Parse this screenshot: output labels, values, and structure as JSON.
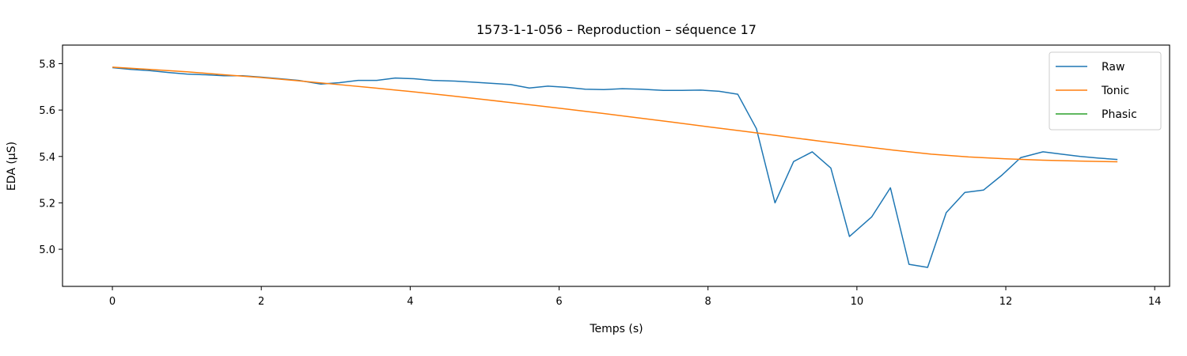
{
  "chart_data": {
    "type": "line",
    "title": "1573-1-1-056 – Reproduction – séquence 17",
    "xlabel": "Temps (s)",
    "ylabel": "EDA (µS)",
    "xlim": [
      -0.67,
      14.2
    ],
    "ylim": [
      4.84,
      5.88
    ],
    "xticks": [
      0,
      2,
      4,
      6,
      8,
      10,
      12,
      14
    ],
    "yticks": [
      5.0,
      5.2,
      5.4,
      5.6,
      5.8
    ],
    "xtick_labels": [
      "0",
      "2",
      "4",
      "6",
      "8",
      "10",
      "12",
      "14"
    ],
    "ytick_labels": [
      "5.0",
      "5.2",
      "5.4",
      "5.6",
      "5.8"
    ],
    "grid": false,
    "legend": "top-right",
    "series": [
      {
        "name": "Raw",
        "color": "#1f77b4",
        "x": [
          0,
          0.25,
          0.5,
          0.75,
          1.0,
          1.25,
          1.5,
          1.75,
          2.0,
          2.25,
          2.5,
          2.8,
          3.05,
          3.3,
          3.55,
          3.8,
          4.05,
          4.3,
          4.6,
          4.85,
          5.1,
          5.35,
          5.6,
          5.85,
          6.1,
          6.35,
          6.6,
          6.85,
          7.1,
          7.4,
          7.65,
          7.9,
          8.15,
          8.4,
          8.65,
          8.9,
          9.15,
          9.4,
          9.65,
          9.9,
          10.2,
          10.45,
          10.7,
          10.95,
          11.2,
          11.45,
          11.7,
          11.95,
          12.2,
          12.5,
          12.75,
          13.0,
          13.25,
          13.5
        ],
        "y": [
          5.783,
          5.775,
          5.77,
          5.762,
          5.755,
          5.752,
          5.748,
          5.748,
          5.742,
          5.735,
          5.728,
          5.712,
          5.718,
          5.728,
          5.728,
          5.738,
          5.735,
          5.728,
          5.725,
          5.72,
          5.715,
          5.71,
          5.695,
          5.703,
          5.698,
          5.69,
          5.688,
          5.692,
          5.69,
          5.685,
          5.685,
          5.686,
          5.681,
          5.668,
          5.52,
          5.2,
          5.378,
          5.42,
          5.35,
          5.055,
          5.14,
          5.265,
          4.935,
          4.922,
          5.158,
          5.245,
          5.255,
          5.32,
          5.395,
          5.42,
          5.41,
          5.4,
          5.393,
          5.387
        ]
      },
      {
        "name": "Tonic",
        "color": "#ff7f0e",
        "x": [
          0,
          0.5,
          1.0,
          1.5,
          2.0,
          2.5,
          3.0,
          3.5,
          4.0,
          4.5,
          5.0,
          5.5,
          6.0,
          6.5,
          7.0,
          7.5,
          8.0,
          8.5,
          9.0,
          9.5,
          10.0,
          10.5,
          11.0,
          11.5,
          12.0,
          12.5,
          13.0,
          13.5
        ],
        "y": [
          5.785,
          5.775,
          5.765,
          5.752,
          5.74,
          5.726,
          5.711,
          5.696,
          5.68,
          5.663,
          5.645,
          5.627,
          5.608,
          5.589,
          5.569,
          5.549,
          5.528,
          5.508,
          5.487,
          5.466,
          5.446,
          5.427,
          5.41,
          5.398,
          5.39,
          5.384,
          5.38,
          5.377
        ]
      },
      {
        "name": "Phasic",
        "color": "#2ca02c",
        "x": [],
        "y": []
      }
    ]
  }
}
